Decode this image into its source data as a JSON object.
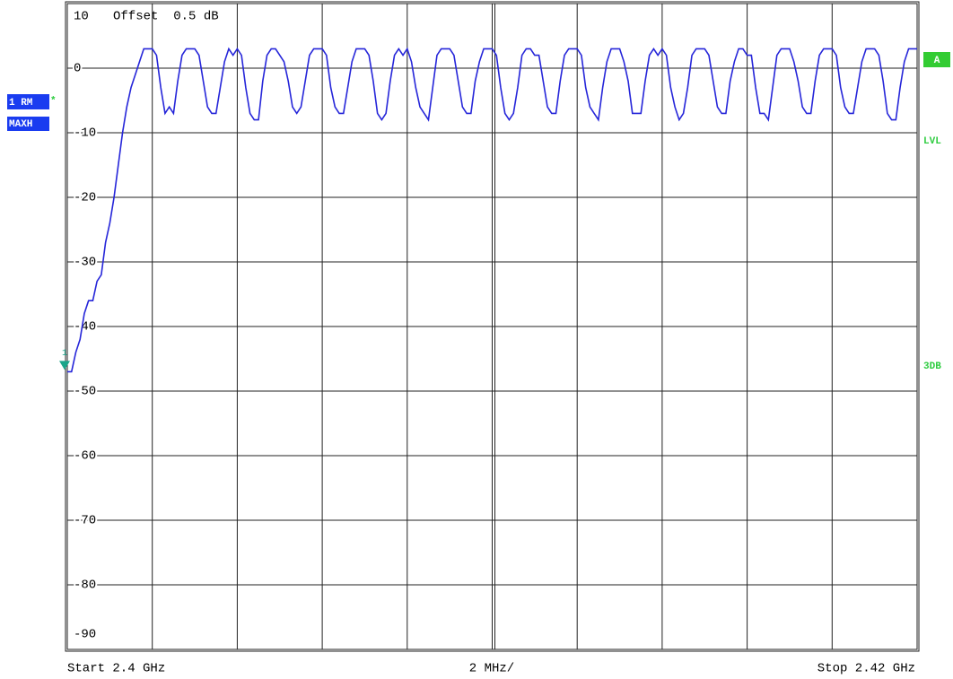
{
  "chart_data": {
    "type": "line",
    "title": "Offset  0.5 dB",
    "start_label": "Start 2.4 GHz",
    "division_label": "2 MHz/",
    "stop_label": "Stop 2.42 GHz",
    "trace_label": "1 RM",
    "trace_flag": "*",
    "trace_mode": "MAXH",
    "right_labels": [
      "A",
      "LVL",
      "3DB"
    ],
    "marker_label": "1",
    "xlim": [
      2.4,
      2.42
    ],
    "xgrid_divisions": 10,
    "ylim": [
      -90,
      10
    ],
    "yticks": [
      10,
      0,
      -10,
      -20,
      -30,
      -40,
      -50,
      -60,
      -70,
      -80,
      -90
    ],
    "grid": true,
    "x": [
      2.4,
      2.4001,
      2.4002,
      2.4003,
      2.4004,
      2.4005,
      2.4006,
      2.4007,
      2.4008,
      2.4009,
      2.401,
      2.4011,
      2.4012,
      2.4013,
      2.4014,
      2.4015,
      2.4016,
      2.4017,
      2.4018,
      2.4019,
      2.402,
      2.4021,
      2.4022,
      2.4023,
      2.4024,
      2.4025,
      2.4026,
      2.4027,
      2.4028,
      2.4029,
      2.403,
      2.4031,
      2.4032,
      2.4033,
      2.4034,
      2.4035,
      2.4036,
      2.4037,
      2.4038,
      2.4039,
      2.404,
      2.4041,
      2.4042,
      2.4043,
      2.4044,
      2.4045,
      2.4046,
      2.4047,
      2.4048,
      2.4049,
      2.405,
      2.4051,
      2.4052,
      2.4053,
      2.4054,
      2.4055,
      2.4056,
      2.4057,
      2.4058,
      2.4059,
      2.406,
      2.4061,
      2.4062,
      2.4063,
      2.4064,
      2.4065,
      2.4066,
      2.4067,
      2.4068,
      2.4069,
      2.407,
      2.4071,
      2.4072,
      2.4073,
      2.4074,
      2.4075,
      2.4076,
      2.4077,
      2.4078,
      2.4079,
      2.408,
      2.4081,
      2.4082,
      2.4083,
      2.4084,
      2.4085,
      2.4086,
      2.4087,
      2.4088,
      2.4089,
      2.409,
      2.4091,
      2.4092,
      2.4093,
      2.4094,
      2.4095,
      2.4096,
      2.4097,
      2.4098,
      2.4099,
      2.41,
      2.4101,
      2.4102,
      2.4103,
      2.4104,
      2.4105,
      2.4106,
      2.4107,
      2.4108,
      2.4109,
      2.411,
      2.4111,
      2.4112,
      2.4113,
      2.4114,
      2.4115,
      2.4116,
      2.4117,
      2.4118,
      2.4119,
      2.412,
      2.4121,
      2.4122,
      2.4123,
      2.4124,
      2.4125,
      2.4126,
      2.4127,
      2.4128,
      2.4129,
      2.413,
      2.4131,
      2.4132,
      2.4133,
      2.4134,
      2.4135,
      2.4136,
      2.4137,
      2.4138,
      2.4139,
      2.414,
      2.4141,
      2.4142,
      2.4143,
      2.4144,
      2.4145,
      2.4146,
      2.4147,
      2.4148,
      2.4149,
      2.415,
      2.4151,
      2.4152,
      2.4153,
      2.4154,
      2.4155,
      2.4156,
      2.4157,
      2.4158,
      2.4159,
      2.416,
      2.4161,
      2.4162,
      2.4163,
      2.4164,
      2.4165,
      2.4166,
      2.4167,
      2.4168,
      2.4169,
      2.417,
      2.4171,
      2.4172,
      2.4173,
      2.4174,
      2.4175,
      2.4176,
      2.4177,
      2.4178,
      2.4179,
      2.418,
      2.4181,
      2.4182,
      2.4183,
      2.4184,
      2.4185,
      2.4186,
      2.4187,
      2.4188,
      2.4189,
      2.419,
      2.4191,
      2.4192,
      2.4193,
      2.4194,
      2.4195,
      2.4196,
      2.4197,
      2.4198,
      2.4199,
      2.42
    ],
    "series": [
      {
        "color": "#2626d9",
        "values": [
          -47,
          -47,
          -44,
          -42,
          -38,
          -36,
          -36,
          -33,
          -32,
          -27,
          -24,
          -20,
          -15,
          -10,
          -6,
          -3,
          -1,
          1,
          3,
          3,
          3,
          2,
          -3,
          -7,
          -6,
          -7,
          -2,
          2,
          3,
          3,
          3,
          2,
          -2,
          -6,
          -7,
          -7,
          -3,
          1,
          3,
          2,
          3,
          2,
          -3,
          -7,
          -8,
          -8,
          -2,
          2,
          3,
          3,
          2,
          1,
          -2,
          -6,
          -7,
          -6,
          -2,
          2,
          3,
          3,
          3,
          2,
          -3,
          -6,
          -7,
          -7,
          -3,
          1,
          3,
          3,
          3,
          2,
          -2,
          -7,
          -8,
          -7,
          -2,
          2,
          3,
          2,
          3,
          1,
          -3,
          -6,
          -7,
          -8,
          -3,
          2,
          3,
          3,
          3,
          2,
          -2,
          -6,
          -7,
          -7,
          -2,
          1,
          3,
          3,
          3,
          2,
          -3,
          -7,
          -8,
          -7,
          -3,
          2,
          3,
          3,
          2,
          2,
          -2,
          -6,
          -7,
          -7,
          -2,
          2,
          3,
          3,
          3,
          2,
          -3,
          -6,
          -7,
          -8,
          -3,
          1,
          3,
          3,
          3,
          1,
          -2,
          -7,
          -7,
          -7,
          -2,
          2,
          3,
          2,
          3,
          2,
          -3,
          -6,
          -8,
          -7,
          -3,
          2,
          3,
          3,
          3,
          2,
          -2,
          -6,
          -7,
          -7,
          -2,
          1,
          3,
          3,
          2,
          2,
          -3,
          -7,
          -7,
          -8,
          -3,
          2,
          3,
          3,
          3,
          1,
          -2,
          -6,
          -7,
          -7,
          -2,
          2,
          3,
          3,
          3,
          2,
          -3,
          -6,
          -7,
          -7,
          -3,
          1,
          3,
          3,
          3,
          2,
          -2,
          -7,
          -8,
          -8,
          -3,
          1,
          3,
          3,
          3
        ]
      }
    ]
  }
}
